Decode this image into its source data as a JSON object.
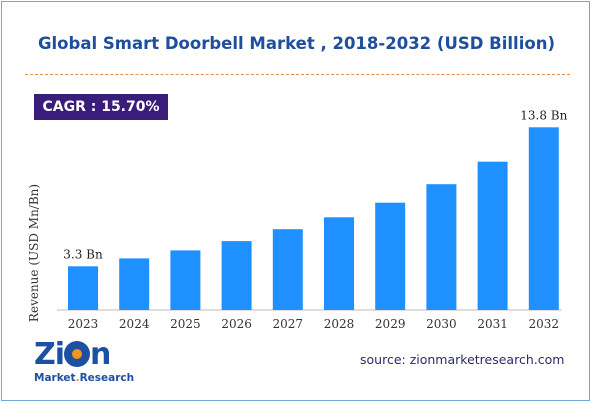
{
  "title": "Global Smart Doorbell Market , 2018-2032 (USD Billion)",
  "cagr": "CAGR :  15.70%",
  "source": "source: zionmarketresearch.com",
  "logo": {
    "line1_a": "Zi",
    "line1_b": "n",
    "line2_a": "Market",
    "line2_b": ".",
    "line2_c": "Research"
  },
  "colors": {
    "bar": "#1e90ff",
    "title": "#1f4e9c",
    "cagr_bg": "#3a1c7a",
    "divider": "#e0904a"
  },
  "chart_data": {
    "type": "bar",
    "title": "Global Smart Doorbell Market , 2018-2032 (USD Billion)",
    "xlabel": "",
    "ylabel": "Revenue (USD Mn/Bn)",
    "categories": [
      "2023",
      "2024",
      "2025",
      "2026",
      "2027",
      "2028",
      "2029",
      "2030",
      "2031",
      "2032"
    ],
    "values": [
      3.3,
      3.9,
      4.5,
      5.2,
      6.1,
      7.0,
      8.1,
      9.5,
      11.2,
      13.8
    ],
    "data_labels": [
      {
        "index": 0,
        "text": "3.3 Bn"
      },
      {
        "index": 9,
        "text": "13.8 Bn"
      }
    ],
    "ylim": [
      0,
      14.5
    ],
    "grid": false,
    "legend": "none"
  }
}
